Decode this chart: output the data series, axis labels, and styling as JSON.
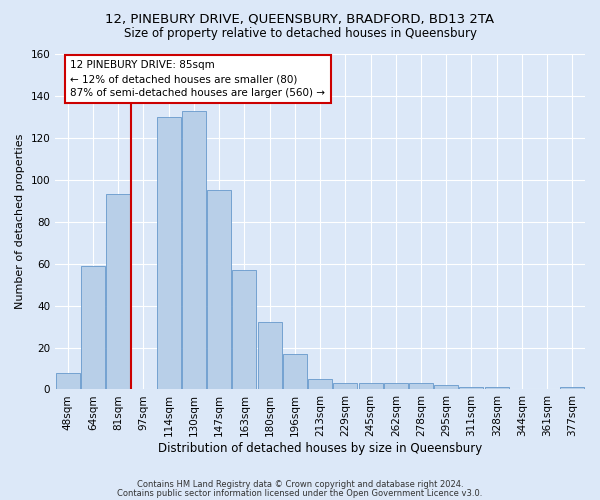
{
  "title": "12, PINEBURY DRIVE, QUEENSBURY, BRADFORD, BD13 2TA",
  "subtitle": "Size of property relative to detached houses in Queensbury",
  "xlabel": "Distribution of detached houses by size in Queensbury",
  "ylabel": "Number of detached properties",
  "bar_labels": [
    "48sqm",
    "64sqm",
    "81sqm",
    "97sqm",
    "114sqm",
    "130sqm",
    "147sqm",
    "163sqm",
    "180sqm",
    "196sqm",
    "213sqm",
    "229sqm",
    "245sqm",
    "262sqm",
    "278sqm",
    "295sqm",
    "311sqm",
    "328sqm",
    "344sqm",
    "361sqm",
    "377sqm"
  ],
  "bar_values": [
    8,
    59,
    93,
    0,
    130,
    133,
    95,
    57,
    32,
    17,
    5,
    3,
    3,
    3,
    3,
    2,
    1,
    1,
    0,
    0,
    1
  ],
  "bar_color": "#b8cfe8",
  "bar_edge_color": "#6699cc",
  "red_line_color": "#cc0000",
  "annotation_line1": "12 PINEBURY DRIVE: 85sqm",
  "annotation_line2": "← 12% of detached houses are smaller (80)",
  "annotation_line3": "87% of semi-detached houses are larger (560) →",
  "annotation_box_facecolor": "#ffffff",
  "annotation_box_edgecolor": "#cc0000",
  "ylim": [
    0,
    160
  ],
  "yticks": [
    0,
    20,
    40,
    60,
    80,
    100,
    120,
    140,
    160
  ],
  "background_color": "#dce8f8",
  "plot_bg_color": "#dce8f8",
  "footer1": "Contains HM Land Registry data © Crown copyright and database right 2024.",
  "footer2": "Contains public sector information licensed under the Open Government Licence v3.0.",
  "title_fontsize": 9.5,
  "subtitle_fontsize": 8.5,
  "ylabel_fontsize": 8,
  "xlabel_fontsize": 8.5,
  "tick_fontsize": 7.5,
  "footer_fontsize": 6.0,
  "annotation_fontsize": 7.5
}
